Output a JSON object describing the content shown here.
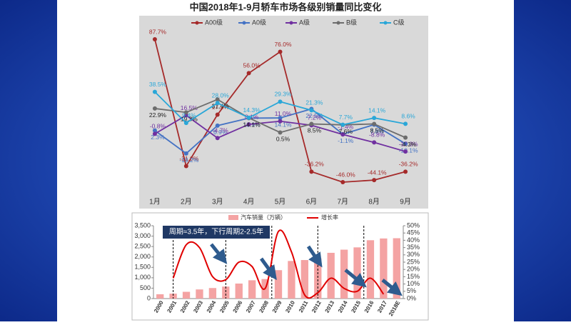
{
  "chart_data": [
    {
      "type": "line",
      "title": "中国2018年1-9月轿车市场各级别销量同比变化",
      "categories": [
        "1月",
        "2月",
        "3月",
        "4月",
        "5月",
        "6月",
        "7月",
        "8月",
        "9月"
      ],
      "series": [
        {
          "name": "A00级",
          "color": "#a52a2a",
          "values": [
            87.7,
            -31.0,
            17.2,
            56.0,
            76.0,
            -36.2,
            -46.0,
            -44.1,
            -36.2
          ],
          "value_labels": [
            "87.7%",
            "-31.0%",
            "17.2%",
            "56.0%",
            "76.0%",
            "-36.2%",
            "-46.0%",
            "-44.1%",
            "-36.2%"
          ]
        },
        {
          "name": "A0级",
          "color": "#4472c4",
          "values": [
            2.3,
            -19.2,
            6.9,
            13.9,
            14.1,
            22.5,
            -1.1,
            7.8,
            -10.1
          ],
          "value_labels": [
            "2.3%",
            "-19.2%",
            "6.9%",
            "13.9%",
            "14.1%",
            "22.5%",
            "-1.1%",
            "7.8%",
            "-10.1%"
          ]
        },
        {
          "name": "A级",
          "color": "#7030a0",
          "values": [
            -0.8,
            16.5,
            -4.7,
            8.1,
            11.0,
            7.2,
            -1.4,
            -8.8,
            -17.3
          ],
          "value_labels": [
            "-0.8%",
            "16.5%",
            "-4.7%",
            "8.1%",
            "11.0%",
            "7.2%",
            "-1.4%",
            "-8.8%",
            "-17.3%"
          ]
        },
        {
          "name": "B级",
          "color": "#6d6d6d",
          "values": [
            22.9,
            19.3,
            31.4,
            14.1,
            0.5,
            8.5,
            7.6,
            8.5,
            -4.3
          ],
          "value_labels": [
            "22.9%",
            "19.3%",
            "31.4%",
            "14.1%",
            "0.5%",
            "8.5%",
            "7.6%",
            "8.5%",
            "-4.3%"
          ]
        },
        {
          "name": "C级",
          "color": "#2aa7d8",
          "values": [
            38.5,
            9.4,
            28.0,
            14.3,
            29.3,
            21.3,
            7.7,
            14.1,
            8.6
          ],
          "value_labels": [
            "38.5%",
            "9.4%",
            "28.0%",
            "14.3%",
            "29.3%",
            "21.3%",
            "7.7%",
            "14.1%",
            "8.6%"
          ]
        }
      ]
    },
    {
      "type": "bar-line",
      "annotation": "周期≈3.5年，下行周期2-2.5年",
      "categories": [
        "2000",
        "2001",
        "2002",
        "2003",
        "2004",
        "2005",
        "2006",
        "2007",
        "2008",
        "2009",
        "2010",
        "2011",
        "2012",
        "2013",
        "2014",
        "2015",
        "2016",
        "2017",
        "2018E"
      ],
      "series": [
        {
          "name": "汽车销量（万辆）",
          "color": "#f4a3a3",
          "values": [
            208,
            237,
            325,
            439,
            507,
            576,
            722,
            879,
            938,
            1364,
            1806,
            1851,
            1931,
            2198,
            2349,
            2460,
            2803,
            2888,
            2900
          ]
        },
        {
          "name": "增长率",
          "color": "#e00000",
          "axis": "y2",
          "values": [
            null,
            14,
            37,
            35,
            15,
            13,
            25,
            22,
            7,
            46,
            32,
            2.5,
            4,
            14,
            7,
            5,
            14,
            3,
            null
          ]
        }
      ],
      "ylim": [
        0,
        3500
      ],
      "yticks": [
        0,
        500,
        {
          "value": 1000,
          "label": "1,000"
        },
        {
          "value": 1500,
          "label": "1,500"
        },
        {
          "value": 2000,
          "label": "2,000"
        },
        {
          "value": 2500,
          "label": "2,500"
        },
        {
          "value": 3000,
          "label": "3,000"
        },
        {
          "value": 3500,
          "label": "3,500"
        }
      ],
      "y2lim": [
        0,
        50
      ],
      "y2ticks": [
        {
          "value": 0,
          "label": "0%"
        },
        {
          "value": 5,
          "label": "5%"
        },
        {
          "value": 10,
          "label": "10%"
        },
        {
          "value": 15,
          "label": "15%"
        },
        {
          "value": 20,
          "label": "20%"
        },
        {
          "value": 25,
          "label": "25%"
        },
        {
          "value": 30,
          "label": "30%"
        },
        {
          "value": 35,
          "label": "35%"
        },
        {
          "value": 40,
          "label": "40%"
        },
        {
          "value": 45,
          "label": "45%"
        },
        {
          "value": 50,
          "label": "50%"
        }
      ]
    }
  ]
}
